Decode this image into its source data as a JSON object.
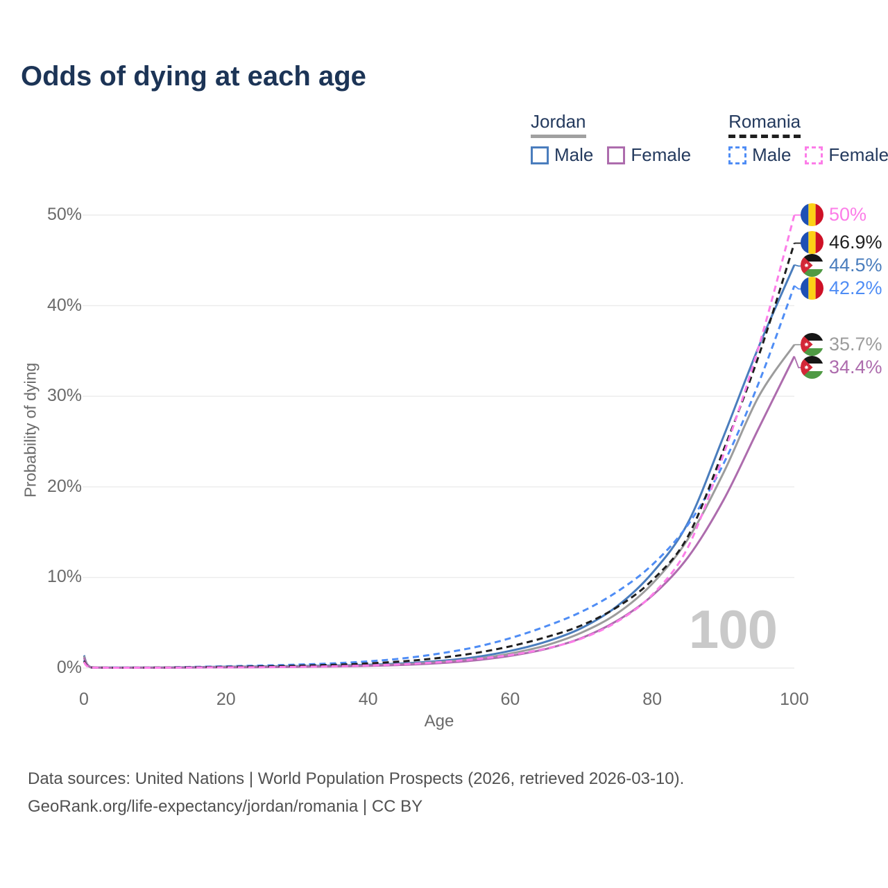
{
  "title": "Odds of dying at each age",
  "legend": {
    "groups": [
      {
        "country": "Jordan",
        "line_color": "#a0a0a0",
        "line_style": "solid",
        "items": [
          {
            "label": "Male",
            "color": "#4a7dbd",
            "style": "solid"
          },
          {
            "label": "Female",
            "color": "#ad6cad",
            "style": "solid"
          }
        ]
      },
      {
        "country": "Romania",
        "line_color": "#1f1f1f",
        "line_style": "dashed",
        "items": [
          {
            "label": "Male",
            "color": "#4f8df5",
            "style": "dashed"
          },
          {
            "label": "Female",
            "color": "#fc7de8",
            "style": "dashed"
          }
        ]
      }
    ]
  },
  "chart_data": {
    "type": "line",
    "title": "Odds of dying at each age",
    "xlabel": "Age",
    "ylabel": "Probability of dying",
    "xlim": [
      0,
      100
    ],
    "ylim": [
      0,
      50
    ],
    "xticks": [
      "0",
      "20",
      "40",
      "60",
      "80",
      "100"
    ],
    "yticks": [
      "0%",
      "10%",
      "20%",
      "30%",
      "40%",
      "50%"
    ],
    "grid": "horizontal",
    "legend_position": "top-right",
    "watermark": "100",
    "x": [
      0,
      1,
      5,
      10,
      15,
      20,
      25,
      30,
      35,
      40,
      45,
      50,
      55,
      60,
      65,
      70,
      75,
      80,
      85,
      90,
      95,
      100
    ],
    "series": [
      {
        "id": "jordan-male",
        "name": "Jordan Male",
        "country": "jordan",
        "sex": "male",
        "color": "#4a7dbd",
        "dash": false,
        "values": [
          1.4,
          0.1,
          0.05,
          0.06,
          0.1,
          0.15,
          0.18,
          0.22,
          0.28,
          0.37,
          0.52,
          0.78,
          1.2,
          1.9,
          2.9,
          4.4,
          6.8,
          10.5,
          16.0,
          25.5,
          35.5,
          44.5
        ],
        "end_label": "44.5%"
      },
      {
        "id": "romania-male",
        "name": "Romania Male",
        "country": "romania",
        "sex": "male",
        "color": "#4f8df5",
        "dash": true,
        "values": [
          0.9,
          0.07,
          0.05,
          0.06,
          0.12,
          0.2,
          0.28,
          0.38,
          0.52,
          0.74,
          1.08,
          1.6,
          2.3,
          3.3,
          4.6,
          6.2,
          8.4,
          11.4,
          15.8,
          22.5,
          31.5,
          42.2
        ],
        "end_label": "42.2%"
      },
      {
        "id": "jordan-total",
        "name": "Jordan",
        "country": "jordan",
        "sex": "both",
        "color": "#9c9c9c",
        "dash": false,
        "values": [
          1.3,
          0.09,
          0.045,
          0.05,
          0.08,
          0.12,
          0.14,
          0.17,
          0.22,
          0.3,
          0.43,
          0.66,
          1.0,
          1.6,
          2.5,
          3.9,
          6.0,
          9.3,
          14.2,
          21.5,
          30.0,
          35.7
        ],
        "end_label": "35.7%"
      },
      {
        "id": "jordan-female",
        "name": "Jordan Female",
        "country": "jordan",
        "sex": "female",
        "color": "#ad6cad",
        "dash": false,
        "values": [
          1.15,
          0.08,
          0.04,
          0.04,
          0.06,
          0.08,
          0.1,
          0.13,
          0.17,
          0.24,
          0.35,
          0.54,
          0.85,
          1.35,
          2.1,
          3.3,
          5.2,
          8.0,
          12.2,
          18.5,
          26.5,
          34.4
        ],
        "end_label": "34.4%"
      },
      {
        "id": "romania-total",
        "name": "Romania",
        "country": "romania",
        "sex": "both",
        "color": "#1f1f1f",
        "dash": true,
        "values": [
          0.78,
          0.06,
          0.04,
          0.05,
          0.09,
          0.14,
          0.19,
          0.26,
          0.36,
          0.51,
          0.75,
          1.12,
          1.65,
          2.4,
          3.4,
          4.7,
          6.7,
          9.7,
          14.5,
          24.0,
          34.5,
          46.9
        ],
        "end_label": "46.9%"
      },
      {
        "id": "romania-female",
        "name": "Romania Female",
        "country": "romania",
        "sex": "female",
        "color": "#fc7de8",
        "dash": true,
        "values": [
          0.65,
          0.05,
          0.03,
          0.04,
          0.06,
          0.08,
          0.1,
          0.14,
          0.2,
          0.29,
          0.43,
          0.65,
          0.98,
          1.45,
          2.15,
          3.25,
          5.1,
          8.1,
          13.3,
          23.5,
          35.5,
          50.0
        ],
        "end_label": "50%"
      }
    ]
  },
  "icons": {
    "romania_flag": {
      "blue": "#1e50b5",
      "yellow": "#fcd116",
      "red": "#ce1126"
    },
    "jordan_flag": {
      "black": "#161616",
      "white": "#ffffff",
      "green": "#4f9a44",
      "red": "#d32737",
      "star": "#ffffff"
    }
  },
  "footer": {
    "line1": "Data sources: United Nations | World Population Prospects (2026, retrieved 2026-03-10).",
    "line2": "GeoRank.org/life-expectancy/jordan/romania | CC BY"
  }
}
